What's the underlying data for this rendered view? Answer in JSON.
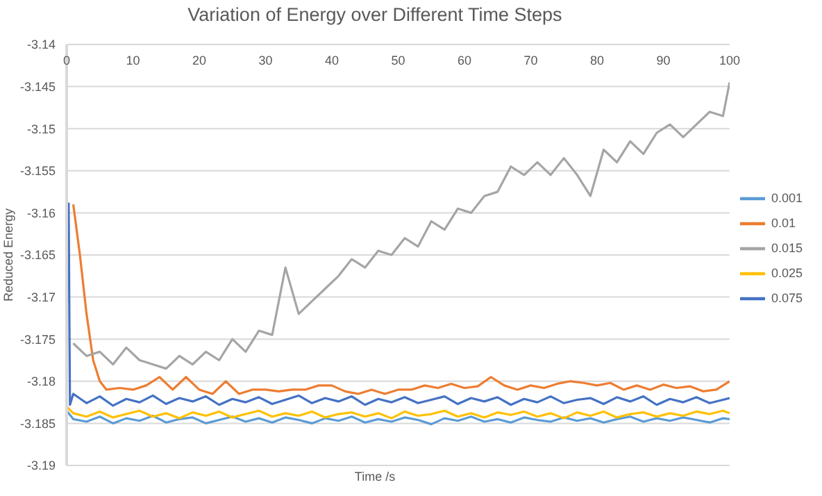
{
  "chart_data": {
    "type": "line",
    "title": "Variation of Energy over Different Time Steps",
    "xlabel": "Time /s",
    "ylabel": "Reduced Energy",
    "xlim": [
      0,
      100
    ],
    "xticks": [
      0,
      10,
      20,
      30,
      40,
      50,
      60,
      70,
      80,
      90,
      100
    ],
    "ylim": [
      -3.19,
      -3.14
    ],
    "yticks": [
      -3.19,
      -3.185,
      -3.18,
      -3.175,
      -3.17,
      -3.165,
      -3.16,
      -3.155,
      -3.15,
      -3.145,
      -3.14
    ],
    "grid": "y",
    "legend": "right",
    "marker": "none",
    "line_style": "solid",
    "series": [
      {
        "name": "0.001",
        "color": "#5b9bd5",
        "x": [
          0,
          1,
          3,
          5,
          7,
          9,
          11,
          13,
          15,
          17,
          19,
          21,
          23,
          25,
          27,
          29,
          31,
          33,
          35,
          37,
          39,
          41,
          43,
          45,
          47,
          49,
          51,
          53,
          55,
          57,
          59,
          61,
          63,
          65,
          67,
          69,
          71,
          73,
          75,
          77,
          79,
          81,
          83,
          85,
          87,
          89,
          91,
          93,
          95,
          97,
          99,
          100
        ],
        "values": [
          -3.1835,
          -3.1845,
          -3.1848,
          -3.1842,
          -3.185,
          -3.1844,
          -3.1847,
          -3.1841,
          -3.1849,
          -3.1845,
          -3.1843,
          -3.185,
          -3.1846,
          -3.1842,
          -3.1848,
          -3.1844,
          -3.1849,
          -3.1843,
          -3.1846,
          -3.185,
          -3.1844,
          -3.1847,
          -3.1842,
          -3.1849,
          -3.1845,
          -3.1848,
          -3.1843,
          -3.1846,
          -3.1851,
          -3.1844,
          -3.1847,
          -3.1842,
          -3.1848,
          -3.1845,
          -3.1849,
          -3.1843,
          -3.1846,
          -3.1848,
          -3.1843,
          -3.1847,
          -3.1844,
          -3.1849,
          -3.1845,
          -3.1842,
          -3.1848,
          -3.1844,
          -3.1847,
          -3.1843,
          -3.1846,
          -3.1849,
          -3.1844,
          -3.1845
        ]
      },
      {
        "name": "0.01",
        "color": "#ed7d31",
        "x": [
          1,
          2,
          3,
          4,
          5,
          6,
          8,
          10,
          12,
          14,
          16,
          18,
          20,
          22,
          24,
          26,
          28,
          30,
          32,
          34,
          36,
          38,
          40,
          42,
          44,
          46,
          48,
          50,
          52,
          54,
          56,
          58,
          60,
          62,
          64,
          66,
          68,
          70,
          72,
          74,
          76,
          78,
          80,
          82,
          84,
          86,
          88,
          90,
          92,
          94,
          96,
          98,
          100
        ],
        "values": [
          -3.159,
          -3.165,
          -3.172,
          -3.1775,
          -3.18,
          -3.181,
          -3.1808,
          -3.181,
          -3.1805,
          -3.1795,
          -3.181,
          -3.1795,
          -3.181,
          -3.1815,
          -3.18,
          -3.1815,
          -3.181,
          -3.181,
          -3.1812,
          -3.181,
          -3.181,
          -3.1805,
          -3.1805,
          -3.1812,
          -3.1815,
          -3.181,
          -3.1815,
          -3.181,
          -3.181,
          -3.1805,
          -3.1808,
          -3.1803,
          -3.1808,
          -3.1806,
          -3.1795,
          -3.1805,
          -3.181,
          -3.1805,
          -3.1808,
          -3.1803,
          -3.18,
          -3.1802,
          -3.1805,
          -3.1802,
          -3.181,
          -3.1805,
          -3.181,
          -3.1804,
          -3.1808,
          -3.1806,
          -3.1812,
          -3.181,
          -3.18
        ]
      },
      {
        "name": "0.015",
        "color": "#a5a5a5",
        "x": [
          1,
          3,
          5,
          7,
          9,
          11,
          13,
          15,
          17,
          19,
          21,
          23,
          25,
          27,
          29,
          31,
          33,
          35,
          37,
          39,
          41,
          43,
          45,
          47,
          49,
          51,
          53,
          55,
          57,
          59,
          61,
          63,
          65,
          67,
          69,
          71,
          73,
          75,
          77,
          79,
          81,
          83,
          85,
          87,
          89,
          91,
          93,
          95,
          97,
          99,
          100
        ],
        "values": [
          -3.1755,
          -3.177,
          -3.1765,
          -3.178,
          -3.176,
          -3.1775,
          -3.178,
          -3.1785,
          -3.177,
          -3.178,
          -3.1765,
          -3.1775,
          -3.175,
          -3.1765,
          -3.174,
          -3.1745,
          -3.1665,
          -3.172,
          -3.1705,
          -3.169,
          -3.1675,
          -3.1655,
          -3.1665,
          -3.1645,
          -3.165,
          -3.163,
          -3.164,
          -3.161,
          -3.162,
          -3.1595,
          -3.16,
          -3.158,
          -3.1575,
          -3.1545,
          -3.1555,
          -3.154,
          -3.1555,
          -3.1535,
          -3.1555,
          -3.158,
          -3.1525,
          -3.154,
          -3.1515,
          -3.153,
          -3.1505,
          -3.1495,
          -3.151,
          -3.1495,
          -3.148,
          -3.1485,
          -3.1445
        ]
      },
      {
        "name": "0.025",
        "color": "#ffc000",
        "x": [
          0,
          1,
          3,
          5,
          7,
          9,
          11,
          13,
          15,
          17,
          19,
          21,
          23,
          25,
          27,
          29,
          31,
          33,
          35,
          37,
          39,
          41,
          43,
          45,
          47,
          49,
          51,
          53,
          55,
          57,
          59,
          61,
          63,
          65,
          67,
          69,
          71,
          73,
          75,
          77,
          79,
          81,
          83,
          85,
          87,
          89,
          91,
          93,
          95,
          97,
          99,
          100
        ],
        "values": [
          -3.183,
          -3.1838,
          -3.1842,
          -3.1836,
          -3.1843,
          -3.1839,
          -3.1835,
          -3.1842,
          -3.1838,
          -3.1844,
          -3.1837,
          -3.1841,
          -3.1836,
          -3.1843,
          -3.1839,
          -3.1835,
          -3.1842,
          -3.1838,
          -3.1841,
          -3.1836,
          -3.1843,
          -3.1839,
          -3.1837,
          -3.1842,
          -3.1838,
          -3.1844,
          -3.1836,
          -3.1841,
          -3.1839,
          -3.1835,
          -3.1842,
          -3.1838,
          -3.1843,
          -3.1837,
          -3.184,
          -3.1836,
          -3.1842,
          -3.1838,
          -3.1844,
          -3.1837,
          -3.1841,
          -3.1836,
          -3.1843,
          -3.1839,
          -3.1837,
          -3.1842,
          -3.1838,
          -3.1841,
          -3.1836,
          -3.1839,
          -3.1835,
          -3.1838
        ]
      },
      {
        "name": "0.075",
        "color": "#4472c4",
        "x": [
          0.3,
          0.5,
          1,
          3,
          5,
          7,
          9,
          11,
          13,
          15,
          17,
          19,
          21,
          23,
          25,
          27,
          29,
          31,
          33,
          35,
          37,
          39,
          41,
          43,
          45,
          47,
          49,
          51,
          53,
          55,
          57,
          59,
          61,
          63,
          65,
          67,
          69,
          71,
          73,
          75,
          77,
          79,
          81,
          83,
          85,
          87,
          89,
          91,
          93,
          95,
          97,
          99,
          100
        ],
        "values": [
          -3.1588,
          -3.1828,
          -3.1815,
          -3.1826,
          -3.1818,
          -3.1829,
          -3.1821,
          -3.1825,
          -3.1817,
          -3.1827,
          -3.182,
          -3.1824,
          -3.1818,
          -3.1828,
          -3.1821,
          -3.1825,
          -3.1819,
          -3.1827,
          -3.1822,
          -3.1817,
          -3.1826,
          -3.182,
          -3.1824,
          -3.1818,
          -3.1828,
          -3.1821,
          -3.1825,
          -3.1819,
          -3.1826,
          -3.1822,
          -3.1818,
          -3.1827,
          -3.182,
          -3.1824,
          -3.1819,
          -3.1828,
          -3.1821,
          -3.1825,
          -3.1818,
          -3.1826,
          -3.1822,
          -3.182,
          -3.1827,
          -3.1819,
          -3.1824,
          -3.1818,
          -3.1828,
          -3.1821,
          -3.1825,
          -3.1819,
          -3.1826,
          -3.1822,
          -3.182
        ]
      }
    ]
  }
}
